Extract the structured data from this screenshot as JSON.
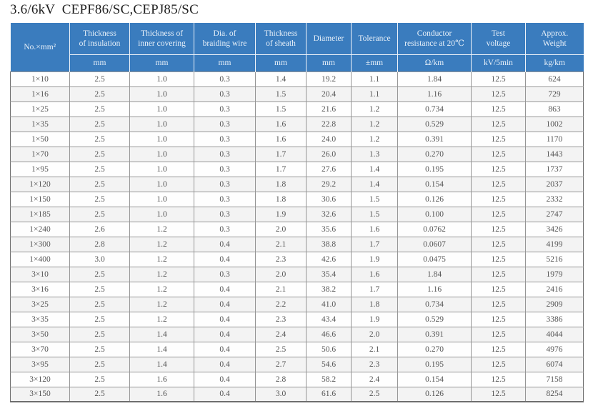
{
  "title": "3.6/6kV  CEPF86/SC,CEPJ85/SC",
  "colors": {
    "header_bg": "#3a7cbe",
    "header_text": "#e9f1f9",
    "grid_line": "#969696",
    "data_text": "#555555",
    "stripe": "#f3f3f3"
  },
  "table": {
    "columns": [
      {
        "label": "No.×mm²",
        "unit": null
      },
      {
        "label": "Thickness\nof insulation",
        "unit": "mm"
      },
      {
        "label": "Thickness of\ninner covering",
        "unit": "mm"
      },
      {
        "label": "Dia. of\nbraiding wire",
        "unit": "mm"
      },
      {
        "label": "Thickness\nof sheath",
        "unit": "mm"
      },
      {
        "label": "Diameter",
        "unit": "mm"
      },
      {
        "label": "Tolerance",
        "unit": "±mm"
      },
      {
        "label": "Conductor\nresistance at 20℃",
        "unit": "Ω/km"
      },
      {
        "label": "Test\nvoltage",
        "unit": "kV/5min"
      },
      {
        "label": "Approx.\nWeight",
        "unit": "kg/km"
      }
    ],
    "rows": [
      [
        "1×10",
        "2.5",
        "1.0",
        "0.3",
        "1.4",
        "19.2",
        "1.1",
        "1.84",
        "12.5",
        "624"
      ],
      [
        "1×16",
        "2.5",
        "1.0",
        "0.3",
        "1.5",
        "20.4",
        "1.1",
        "1.16",
        "12.5",
        "729"
      ],
      [
        "1×25",
        "2.5",
        "1.0",
        "0.3",
        "1.5",
        "21.6",
        "1.2",
        "0.734",
        "12.5",
        "863"
      ],
      [
        "1×35",
        "2.5",
        "1.0",
        "0.3",
        "1.6",
        "22.8",
        "1.2",
        "0.529",
        "12.5",
        "1002"
      ],
      [
        "1×50",
        "2.5",
        "1.0",
        "0.3",
        "1.6",
        "24.0",
        "1.2",
        "0.391",
        "12.5",
        "1170"
      ],
      [
        "1×70",
        "2.5",
        "1.0",
        "0.3",
        "1.7",
        "26.0",
        "1.3",
        "0.270",
        "12.5",
        "1443"
      ],
      [
        "1×95",
        "2.5",
        "1.0",
        "0.3",
        "1.7",
        "27.6",
        "1.4",
        "0.195",
        "12.5",
        "1737"
      ],
      [
        "1×120",
        "2.5",
        "1.0",
        "0.3",
        "1.8",
        "29.2",
        "1.4",
        "0.154",
        "12.5",
        "2037"
      ],
      [
        "1×150",
        "2.5",
        "1.0",
        "0.3",
        "1.8",
        "30.6",
        "1.5",
        "0.126",
        "12.5",
        "2332"
      ],
      [
        "1×185",
        "2.5",
        "1.0",
        "0.3",
        "1.9",
        "32.6",
        "1.5",
        "0.100",
        "12.5",
        "2747"
      ],
      [
        "1×240",
        "2.6",
        "1.2",
        "0.3",
        "2.0",
        "35.6",
        "1.6",
        "0.0762",
        "12.5",
        "3426"
      ],
      [
        "1×300",
        "2.8",
        "1.2",
        "0.4",
        "2.1",
        "38.8",
        "1.7",
        "0.0607",
        "12.5",
        "4199"
      ],
      [
        "1×400",
        "3.0",
        "1.2",
        "0.4",
        "2.3",
        "42.6",
        "1.9",
        "0.0475",
        "12.5",
        "5216"
      ],
      [
        "3×10",
        "2.5",
        "1.2",
        "0.3",
        "2.0",
        "35.4",
        "1.6",
        "1.84",
        "12.5",
        "1979"
      ],
      [
        "3×16",
        "2.5",
        "1.2",
        "0.4",
        "2.1",
        "38.2",
        "1.7",
        "1.16",
        "12.5",
        "2416"
      ],
      [
        "3×25",
        "2.5",
        "1.2",
        "0.4",
        "2.2",
        "41.0",
        "1.8",
        "0.734",
        "12.5",
        "2909"
      ],
      [
        "3×35",
        "2.5",
        "1.2",
        "0.4",
        "2.3",
        "43.4",
        "1.9",
        "0.529",
        "12.5",
        "3386"
      ],
      [
        "3×50",
        "2.5",
        "1.4",
        "0.4",
        "2.4",
        "46.6",
        "2.0",
        "0.391",
        "12.5",
        "4044"
      ],
      [
        "3×70",
        "2.5",
        "1.4",
        "0.4",
        "2.5",
        "50.6",
        "2.1",
        "0.270",
        "12.5",
        "4976"
      ],
      [
        "3×95",
        "2.5",
        "1.4",
        "0.4",
        "2.7",
        "54.6",
        "2.3",
        "0.195",
        "12.5",
        "6074"
      ],
      [
        "3×120",
        "2.5",
        "1.6",
        "0.4",
        "2.8",
        "58.2",
        "2.4",
        "0.154",
        "12.5",
        "7158"
      ],
      [
        "3×150",
        "2.5",
        "1.6",
        "0.4",
        "3.0",
        "61.6",
        "2.5",
        "0.126",
        "12.5",
        "8254"
      ]
    ]
  }
}
